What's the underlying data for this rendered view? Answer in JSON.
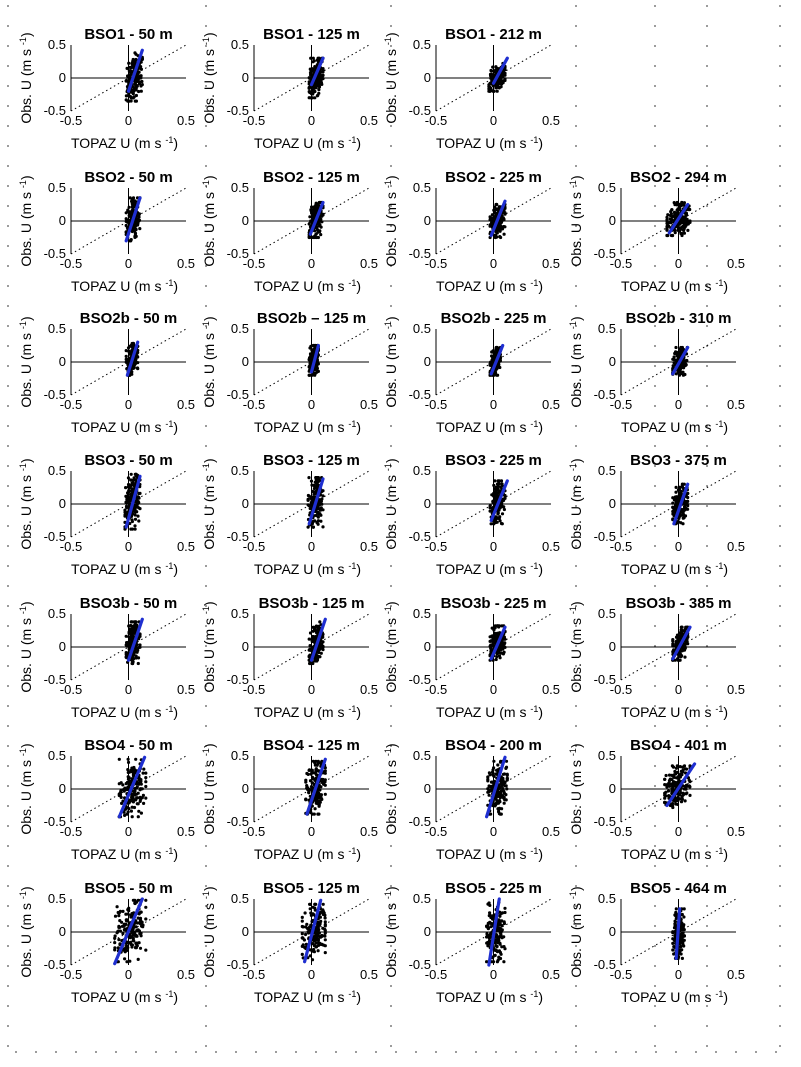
{
  "figure": {
    "x_label": "TOPAZ U (m s",
    "y_label": "Obs. U (m s",
    "unit_exponent": "-1",
    "unit_close": ")",
    "colors": {
      "scatter": "#000000",
      "fit_line": "#1f2fd0",
      "reference_line": "#000000",
      "axis": "#000000"
    }
  },
  "chart_data": [
    {
      "type": "scatter",
      "title": "BSO1 - 50 m",
      "xlabel": "TOPAZ U (m s-1)",
      "ylabel": "Obs. U (m s-1)",
      "xlim": [
        -0.5,
        0.5
      ],
      "ylim": [
        -0.5,
        0.5
      ],
      "xticks": [
        "-0.5",
        "0",
        "0.5"
      ],
      "yticks": [
        "-0.5",
        "0",
        "0.5"
      ],
      "scatter_spread": {
        "x": [
          -0.02,
          0.12
        ],
        "y": [
          -0.35,
          0.38
        ]
      },
      "fit_line": {
        "x": [
          0.0,
          0.12
        ],
        "y": [
          -0.2,
          0.42
        ]
      }
    },
    {
      "type": "scatter",
      "title": "BSO1 - 125 m",
      "xlabel": "TOPAZ U (m s-1)",
      "ylabel": "Obs. U (m s-1)",
      "xlim": [
        -0.5,
        0.5
      ],
      "ylim": [
        -0.5,
        0.5
      ],
      "xticks": [
        "-0.5",
        "0",
        "0.5"
      ],
      "yticks": [
        "-0.5",
        "0",
        "0.5"
      ],
      "scatter_spread": {
        "x": [
          -0.02,
          0.1
        ],
        "y": [
          -0.3,
          0.3
        ]
      },
      "fit_line": {
        "x": [
          0.0,
          0.1
        ],
        "y": [
          -0.1,
          0.3
        ]
      }
    },
    {
      "type": "scatter",
      "title": "BSO1 - 212 m",
      "xlabel": "TOPAZ U (m s-1)",
      "ylabel": "Obs. U (m s-1)",
      "xlim": [
        -0.5,
        0.5
      ],
      "ylim": [
        -0.5,
        0.5
      ],
      "xticks": [
        "-0.5",
        "0",
        "0.5"
      ],
      "yticks": [
        "-0.5",
        "0",
        "0.5"
      ],
      "scatter_spread": {
        "x": [
          -0.04,
          0.1
        ],
        "y": [
          -0.2,
          0.22
        ]
      },
      "fit_line": {
        "x": [
          0.0,
          0.12
        ],
        "y": [
          -0.08,
          0.3
        ]
      }
    },
    {
      "type": "scatter",
      "title": "BSO2 - 50 m",
      "xlabel": "TOPAZ U (m s-1)",
      "ylabel": "Obs. U (m s-1)",
      "xlim": [
        -0.5,
        0.5
      ],
      "ylim": [
        -0.5,
        0.5
      ],
      "xticks": [
        "-0.5",
        "0",
        "0.5"
      ],
      "yticks": [
        "-0.5",
        "0",
        "0.5"
      ],
      "scatter_spread": {
        "x": [
          -0.02,
          0.1
        ],
        "y": [
          -0.3,
          0.35
        ]
      },
      "fit_line": {
        "x": [
          -0.02,
          0.1
        ],
        "y": [
          -0.3,
          0.35
        ]
      }
    },
    {
      "type": "scatter",
      "title": "BSO2 - 125 m",
      "xlabel": "TOPAZ U (m s-1)",
      "ylabel": "Obs. U (m s-1)",
      "xlim": [
        -0.5,
        0.5
      ],
      "ylim": [
        -0.5,
        0.5
      ],
      "xticks": [
        "-0.5",
        "0",
        "0.5"
      ],
      "yticks": [
        "-0.5",
        "0",
        "0.5"
      ],
      "scatter_spread": {
        "x": [
          -0.02,
          0.1
        ],
        "y": [
          -0.25,
          0.28
        ]
      },
      "fit_line": {
        "x": [
          -0.01,
          0.1
        ],
        "y": [
          -0.2,
          0.28
        ]
      }
    },
    {
      "type": "scatter",
      "title": "BSO2 - 225 m",
      "xlabel": "TOPAZ U (m s-1)",
      "ylabel": "Obs. U (m s-1)",
      "xlim": [
        -0.5,
        0.5
      ],
      "ylim": [
        -0.5,
        0.5
      ],
      "xticks": [
        "-0.5",
        "0",
        "0.5"
      ],
      "yticks": [
        "-0.5",
        "0",
        "0.5"
      ],
      "scatter_spread": {
        "x": [
          -0.03,
          0.1
        ],
        "y": [
          -0.25,
          0.25
        ]
      },
      "fit_line": {
        "x": [
          -0.02,
          0.1
        ],
        "y": [
          -0.22,
          0.3
        ]
      }
    },
    {
      "type": "scatter",
      "title": "BSO2 - 294 m",
      "xlabel": "TOPAZ U (m s-1)",
      "ylabel": "Obs. U (m s-1)",
      "xlim": [
        -0.5,
        0.5
      ],
      "ylim": [
        -0.5,
        0.5
      ],
      "xticks": [
        "-0.5",
        "0",
        "0.5"
      ],
      "yticks": [
        "-0.5",
        "0",
        "0.5"
      ],
      "scatter_spread": {
        "x": [
          -0.1,
          0.1
        ],
        "y": [
          -0.22,
          0.28
        ]
      },
      "fit_line": {
        "x": [
          -0.08,
          0.08
        ],
        "y": [
          -0.18,
          0.25
        ]
      }
    },
    {
      "type": "scatter",
      "title": "BSO2b - 50 m",
      "xlabel": "TOPAZ U (m s-1)",
      "ylabel": "Obs. U (m s-1)",
      "xlim": [
        -0.5,
        0.5
      ],
      "ylim": [
        -0.5,
        0.5
      ],
      "xticks": [
        "-0.5",
        "0",
        "0.5"
      ],
      "yticks": [
        "-0.5",
        "0",
        "0.5"
      ],
      "scatter_spread": {
        "x": [
          -0.02,
          0.08
        ],
        "y": [
          -0.2,
          0.28
        ]
      },
      "fit_line": {
        "x": [
          -0.01,
          0.08
        ],
        "y": [
          -0.2,
          0.3
        ]
      }
    },
    {
      "type": "scatter",
      "title": "BSO2b – 125 m",
      "xlabel": "TOPAZ U (m s-1)",
      "ylabel": "Obs. U (m s-1)",
      "xlim": [
        -0.5,
        0.5
      ],
      "ylim": [
        -0.5,
        0.5
      ],
      "xticks": [
        "-0.5",
        "0",
        "0.5"
      ],
      "yticks": [
        "-0.5",
        "0",
        "0.5"
      ],
      "scatter_spread": {
        "x": [
          -0.02,
          0.06
        ],
        "y": [
          -0.2,
          0.25
        ]
      },
      "fit_line": {
        "x": [
          0.0,
          0.06
        ],
        "y": [
          -0.15,
          0.25
        ]
      }
    },
    {
      "type": "scatter",
      "title": "BSO2b - 225 m",
      "xlabel": "TOPAZ U (m s-1)",
      "ylabel": "Obs. U (m s-1)",
      "xlim": [
        -0.5,
        0.5
      ],
      "ylim": [
        -0.5,
        0.5
      ],
      "xticks": [
        "-0.5",
        "0",
        "0.5"
      ],
      "yticks": [
        "-0.5",
        "0",
        "0.5"
      ],
      "scatter_spread": {
        "x": [
          -0.03,
          0.06
        ],
        "y": [
          -0.2,
          0.22
        ]
      },
      "fit_line": {
        "x": [
          -0.02,
          0.08
        ],
        "y": [
          -0.18,
          0.25
        ]
      }
    },
    {
      "type": "scatter",
      "title": "BSO2b - 310 m",
      "xlabel": "TOPAZ U (m s-1)",
      "ylabel": "Obs. U (m s-1)",
      "xlim": [
        -0.5,
        0.5
      ],
      "ylim": [
        -0.5,
        0.5
      ],
      "xticks": [
        "-0.5",
        "0",
        "0.5"
      ],
      "yticks": [
        "-0.5",
        "0",
        "0.5"
      ],
      "scatter_spread": {
        "x": [
          -0.05,
          0.08
        ],
        "y": [
          -0.2,
          0.22
        ]
      },
      "fit_line": {
        "x": [
          -0.05,
          0.08
        ],
        "y": [
          -0.18,
          0.22
        ]
      }
    },
    {
      "type": "scatter",
      "title": "BSO3 - 50 m",
      "xlabel": "TOPAZ U (m s-1)",
      "ylabel": "Obs. U (m s-1)",
      "xlim": [
        -0.5,
        0.5
      ],
      "ylim": [
        -0.5,
        0.5
      ],
      "xticks": [
        "-0.5",
        "0",
        "0.5"
      ],
      "yticks": [
        "-0.5",
        "0",
        "0.5"
      ],
      "scatter_spread": {
        "x": [
          -0.03,
          0.1
        ],
        "y": [
          -0.38,
          0.45
        ]
      },
      "fit_line": {
        "x": [
          -0.02,
          0.1
        ],
        "y": [
          -0.35,
          0.42
        ]
      }
    },
    {
      "type": "scatter",
      "title": "BSO3 - 125 m",
      "xlabel": "TOPAZ U (m s-1)",
      "ylabel": "Obs. U (m s-1)",
      "xlim": [
        -0.5,
        0.5
      ],
      "ylim": [
        -0.5,
        0.5
      ],
      "xticks": [
        "-0.5",
        "0",
        "0.5"
      ],
      "yticks": [
        "-0.5",
        "0",
        "0.5"
      ],
      "scatter_spread": {
        "x": [
          -0.03,
          0.1
        ],
        "y": [
          -0.35,
          0.4
        ]
      },
      "fit_line": {
        "x": [
          -0.02,
          0.1
        ],
        "y": [
          -0.3,
          0.38
        ]
      }
    },
    {
      "type": "scatter",
      "title": "BSO3 - 225 m",
      "xlabel": "TOPAZ U (m s-1)",
      "ylabel": "Obs. U (m s-1)",
      "xlim": [
        -0.5,
        0.5
      ],
      "ylim": [
        -0.5,
        0.5
      ],
      "xticks": [
        "-0.5",
        "0",
        "0.5"
      ],
      "yticks": [
        "-0.5",
        "0",
        "0.5"
      ],
      "scatter_spread": {
        "x": [
          -0.03,
          0.1
        ],
        "y": [
          -0.3,
          0.35
        ]
      },
      "fit_line": {
        "x": [
          -0.02,
          0.12
        ],
        "y": [
          -0.25,
          0.35
        ]
      }
    },
    {
      "type": "scatter",
      "title": "BSO3 - 375 m",
      "xlabel": "TOPAZ U (m s-1)",
      "ylabel": "Obs. U (m s-1)",
      "xlim": [
        -0.5,
        0.5
      ],
      "ylim": [
        -0.5,
        0.5
      ],
      "xticks": [
        "-0.5",
        "0",
        "0.5"
      ],
      "yticks": [
        "-0.5",
        "0",
        "0.5"
      ],
      "scatter_spread": {
        "x": [
          -0.05,
          0.08
        ],
        "y": [
          -0.3,
          0.3
        ]
      },
      "fit_line": {
        "x": [
          -0.04,
          0.08
        ],
        "y": [
          -0.3,
          0.3
        ]
      }
    },
    {
      "type": "scatter",
      "title": "BSO3b - 50 m",
      "xlabel": "TOPAZ U (m s-1)",
      "ylabel": "Obs. U (m s-1)",
      "xlim": [
        -0.5,
        0.5
      ],
      "ylim": [
        -0.5,
        0.5
      ],
      "xticks": [
        "-0.5",
        "0",
        "0.5"
      ],
      "yticks": [
        "-0.5",
        "0",
        "0.5"
      ],
      "scatter_spread": {
        "x": [
          -0.02,
          0.1
        ],
        "y": [
          -0.25,
          0.38
        ]
      },
      "fit_line": {
        "x": [
          0.0,
          0.12
        ],
        "y": [
          -0.2,
          0.42
        ]
      }
    },
    {
      "type": "scatter",
      "title": "BSO3b - 125 m",
      "xlabel": "TOPAZ U (m s-1)",
      "ylabel": "Obs. U (m s-1)",
      "xlim": [
        -0.5,
        0.5
      ],
      "ylim": [
        -0.5,
        0.5
      ],
      "xticks": [
        "-0.5",
        "0",
        "0.5"
      ],
      "yticks": [
        "-0.5",
        "0",
        "0.5"
      ],
      "scatter_spread": {
        "x": [
          -0.02,
          0.1
        ],
        "y": [
          -0.25,
          0.38
        ]
      },
      "fit_line": {
        "x": [
          0.0,
          0.12
        ],
        "y": [
          -0.2,
          0.42
        ]
      }
    },
    {
      "type": "scatter",
      "title": "BSO3b - 225 m",
      "xlabel": "TOPAZ U (m s-1)",
      "ylabel": "Obs. U (m s-1)",
      "xlim": [
        -0.5,
        0.5
      ],
      "ylim": [
        -0.5,
        0.5
      ],
      "xticks": [
        "-0.5",
        "0",
        "0.5"
      ],
      "yticks": [
        "-0.5",
        "0",
        "0.5"
      ],
      "scatter_spread": {
        "x": [
          -0.03,
          0.1
        ],
        "y": [
          -0.2,
          0.32
        ]
      },
      "fit_line": {
        "x": [
          -0.02,
          0.1
        ],
        "y": [
          -0.18,
          0.3
        ]
      }
    },
    {
      "type": "scatter",
      "title": "BSO3b - 385 m",
      "xlabel": "TOPAZ U (m s-1)",
      "ylabel": "Obs. U (m s-1)",
      "xlim": [
        -0.5,
        0.5
      ],
      "ylim": [
        -0.5,
        0.5
      ],
      "xticks": [
        "-0.5",
        "0",
        "0.5"
      ],
      "yticks": [
        "-0.5",
        "0",
        "0.5"
      ],
      "scatter_spread": {
        "x": [
          -0.05,
          0.08
        ],
        "y": [
          -0.2,
          0.3
        ]
      },
      "fit_line": {
        "x": [
          -0.05,
          0.1
        ],
        "y": [
          -0.18,
          0.3
        ]
      }
    },
    {
      "type": "scatter",
      "title": "BSO4 - 50 m",
      "xlabel": "TOPAZ U (m s-1)",
      "ylabel": "Obs. U (m s-1)",
      "xlim": [
        -0.5,
        0.5
      ],
      "ylim": [
        -0.5,
        0.5
      ],
      "xticks": [
        "-0.5",
        "0",
        "0.5"
      ],
      "yticks": [
        "-0.5",
        "0",
        "0.5"
      ],
      "scatter_spread": {
        "x": [
          -0.08,
          0.15
        ],
        "y": [
          -0.42,
          0.45
        ]
      },
      "fit_line": {
        "x": [
          -0.08,
          0.14
        ],
        "y": [
          -0.42,
          0.48
        ]
      }
    },
    {
      "type": "scatter",
      "title": "BSO4 - 125 m",
      "xlabel": "TOPAZ U (m s-1)",
      "ylabel": "Obs. U (m s-1)",
      "xlim": [
        -0.5,
        0.5
      ],
      "ylim": [
        -0.5,
        0.5
      ],
      "xticks": [
        "-0.5",
        "0",
        "0.5"
      ],
      "yticks": [
        "-0.5",
        "0",
        "0.5"
      ],
      "scatter_spread": {
        "x": [
          -0.05,
          0.12
        ],
        "y": [
          -0.38,
          0.42
        ]
      },
      "fit_line": {
        "x": [
          -0.04,
          0.12
        ],
        "y": [
          -0.38,
          0.45
        ]
      }
    },
    {
      "type": "scatter",
      "title": "BSO4 - 200 m",
      "xlabel": "TOPAZ U (m s-1)",
      "ylabel": "Obs. U (m s-1)",
      "xlim": [
        -0.5,
        0.5
      ],
      "ylim": [
        -0.5,
        0.5
      ],
      "xticks": [
        "-0.5",
        "0",
        "0.5"
      ],
      "yticks": [
        "-0.5",
        "0",
        "0.5"
      ],
      "scatter_spread": {
        "x": [
          -0.05,
          0.12
        ],
        "y": [
          -0.38,
          0.42
        ]
      },
      "fit_line": {
        "x": [
          -0.06,
          0.1
        ],
        "y": [
          -0.42,
          0.48
        ]
      }
    },
    {
      "type": "scatter",
      "title": "BSO4 - 401 m",
      "xlabel": "TOPAZ U (m s-1)",
      "ylabel": "Obs. U (m s-1)",
      "xlim": [
        -0.5,
        0.5
      ],
      "ylim": [
        -0.5,
        0.5
      ],
      "xticks": [
        "-0.5",
        "0",
        "0.5"
      ],
      "yticks": [
        "-0.5",
        "0",
        "0.5"
      ],
      "scatter_spread": {
        "x": [
          -0.12,
          0.1
        ],
        "y": [
          -0.28,
          0.35
        ]
      },
      "fit_line": {
        "x": [
          -0.1,
          0.14
        ],
        "y": [
          -0.25,
          0.38
        ]
      }
    },
    {
      "type": "scatter",
      "title": "BSO5 - 50 m",
      "xlabel": "TOPAZ U (m s-1)",
      "ylabel": "Obs. U (m s-1)",
      "xlim": [
        -0.5,
        0.5
      ],
      "ylim": [
        -0.5,
        0.5
      ],
      "xticks": [
        "-0.5",
        "0",
        "0.5"
      ],
      "yticks": [
        "-0.5",
        "0",
        "0.5"
      ],
      "scatter_spread": {
        "x": [
          -0.12,
          0.15
        ],
        "y": [
          -0.45,
          0.48
        ]
      },
      "fit_line": {
        "x": [
          -0.12,
          0.12
        ],
        "y": [
          -0.48,
          0.5
        ]
      }
    },
    {
      "type": "scatter",
      "title": "BSO5 - 125 m",
      "xlabel": "TOPAZ U (m s-1)",
      "ylabel": "Obs. U (m s-1)",
      "xlim": [
        -0.5,
        0.5
      ],
      "ylim": [
        -0.5,
        0.5
      ],
      "xticks": [
        "-0.5",
        "0",
        "0.5"
      ],
      "yticks": [
        "-0.5",
        "0",
        "0.5"
      ],
      "scatter_spread": {
        "x": [
          -0.08,
          0.12
        ],
        "y": [
          -0.42,
          0.42
        ]
      },
      "fit_line": {
        "x": [
          -0.06,
          0.08
        ],
        "y": [
          -0.45,
          0.48
        ]
      }
    },
    {
      "type": "scatter",
      "title": "BSO5 - 225 m",
      "xlabel": "TOPAZ U (m s-1)",
      "ylabel": "Obs. U (m s-1)",
      "xlim": [
        -0.5,
        0.5
      ],
      "ylim": [
        -0.5,
        0.5
      ],
      "xticks": [
        "-0.5",
        "0",
        "0.5"
      ],
      "yticks": [
        "-0.5",
        "0",
        "0.5"
      ],
      "scatter_spread": {
        "x": [
          -0.06,
          0.1
        ],
        "y": [
          -0.45,
          0.45
        ]
      },
      "fit_line": {
        "x": [
          -0.04,
          0.05
        ],
        "y": [
          -0.5,
          0.5
        ]
      }
    },
    {
      "type": "scatter",
      "title": "BSO5 - 464 m",
      "xlabel": "TOPAZ U (m s-1)",
      "ylabel": "Obs. U (m s-1)",
      "xlim": [
        -0.5,
        0.5
      ],
      "ylim": [
        -0.5,
        0.5
      ],
      "xticks": [
        "-0.5",
        "0",
        "0.5"
      ],
      "yticks": [
        "-0.5",
        "0",
        "0.5"
      ],
      "scatter_spread": {
        "x": [
          -0.05,
          0.05
        ],
        "y": [
          -0.4,
          0.35
        ]
      },
      "fit_line": {
        "x": [
          -0.02,
          0.01
        ],
        "y": [
          -0.4,
          0.35
        ]
      }
    }
  ]
}
